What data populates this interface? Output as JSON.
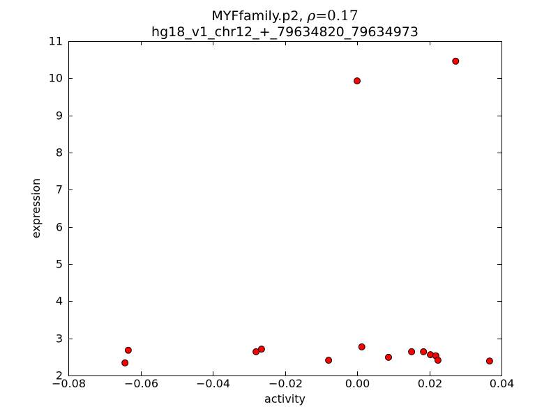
{
  "figure": {
    "title": {
      "prefix": "MYFfamily.p2, ",
      "rho_symbol": "ρ",
      "rho_value": "=0.17",
      "line2": "hg18_v1_chr12_+_79634820_79634973"
    }
  },
  "chart_data": {
    "type": "scatter",
    "title": "MYFfamily.p2, ρ=0.17",
    "subtitle": "hg18_v1_chr12_+_79634820_79634973",
    "xlabel": "activity",
    "ylabel": "expression",
    "xlim": [
      -0.08,
      0.04
    ],
    "ylim": [
      2,
      11
    ],
    "xticks": [
      -0.08,
      -0.06,
      -0.04,
      -0.02,
      0.0,
      0.02,
      0.04
    ],
    "xtick_labels": [
      "−0.08",
      "−0.06",
      "−0.04",
      "−0.02",
      "0.00",
      "0.02",
      "0.04"
    ],
    "yticks": [
      2,
      3,
      4,
      5,
      6,
      7,
      8,
      9,
      10,
      11
    ],
    "ytick_labels": [
      "2",
      "3",
      "4",
      "5",
      "6",
      "7",
      "8",
      "9",
      "10",
      "11"
    ],
    "grid": false,
    "legend": null,
    "rho": 0.17,
    "marker": {
      "shape": "circle",
      "fill_color": "#ff0000",
      "edge_color": "#000000",
      "radius_px": 4.5
    },
    "points": [
      {
        "x": -0.0643,
        "y": 2.34
      },
      {
        "x": -0.0634,
        "y": 2.68
      },
      {
        "x": -0.028,
        "y": 2.64
      },
      {
        "x": -0.0265,
        "y": 2.71
      },
      {
        "x": -0.0079,
        "y": 2.41
      },
      {
        "x": 0.0013,
        "y": 2.77
      },
      {
        "x": 0.0087,
        "y": 2.49
      },
      {
        "x": 0.0151,
        "y": 2.64
      },
      {
        "x": 0.0184,
        "y": 2.64
      },
      {
        "x": 0.0203,
        "y": 2.56
      },
      {
        "x": 0.0218,
        "y": 2.53
      },
      {
        "x": 0.0224,
        "y": 2.41
      },
      {
        "x": 0.0367,
        "y": 2.39
      },
      {
        "x": 0.0,
        "y": 9.93
      },
      {
        "x": 0.0273,
        "y": 10.46
      }
    ]
  }
}
